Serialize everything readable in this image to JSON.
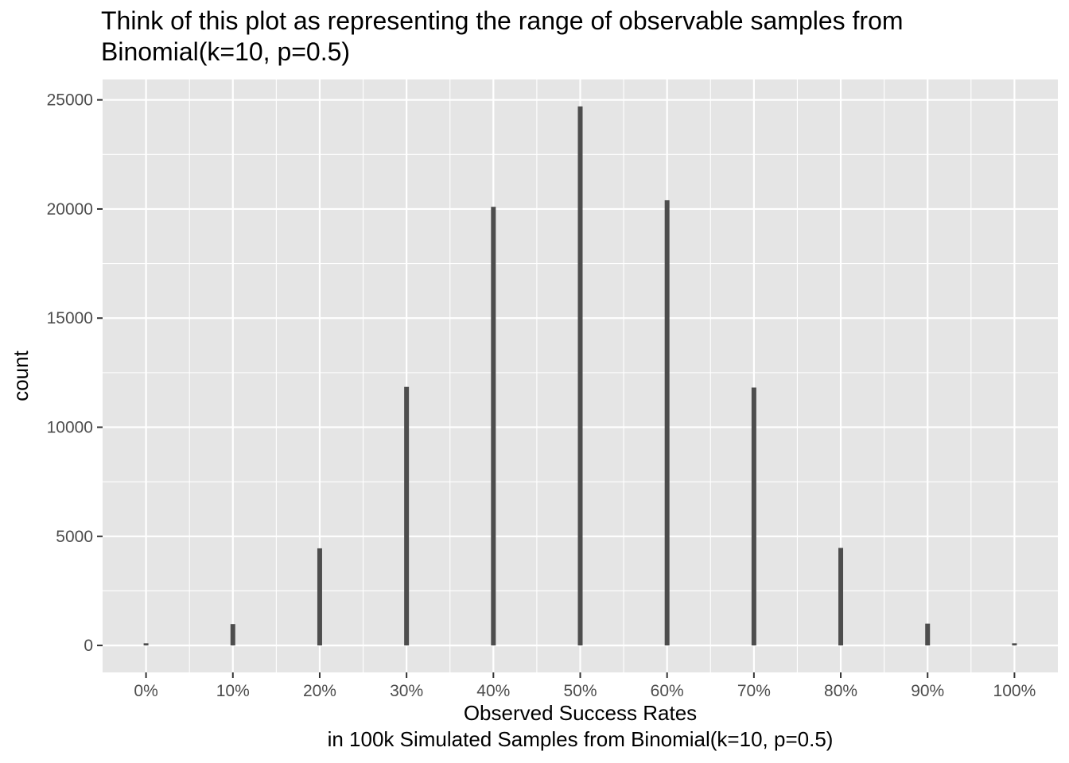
{
  "chart_data": {
    "type": "bar",
    "title_lines": [
      "Think of this plot as representing the range of observable samples from",
      "Binomial(k=10, p=0.5)"
    ],
    "xlabel_lines": [
      "Observed Success Rates",
      "in 100k Simulated Samples from Binomial(k=10, p=0.5)"
    ],
    "ylabel": "count",
    "x": [
      0,
      0.1,
      0.2,
      0.3,
      0.4,
      0.5,
      0.6,
      0.7,
      0.8,
      0.9,
      1.0
    ],
    "categories": [
      "0%",
      "10%",
      "20%",
      "30%",
      "40%",
      "50%",
      "60%",
      "70%",
      "80%",
      "90%",
      "100%"
    ],
    "values": [
      100,
      980,
      4450,
      11850,
      20100,
      24700,
      20400,
      11820,
      4470,
      1000,
      100
    ],
    "y_ticks": [
      0,
      5000,
      10000,
      15000,
      20000,
      25000
    ],
    "y_tick_labels": [
      "0",
      "5000",
      "10000",
      "15000",
      "20000",
      "25000"
    ],
    "xlim": [
      -0.05,
      1.05
    ],
    "ylim": [
      -1235,
      25935
    ],
    "grid": true,
    "legend": "none",
    "colors": {
      "panel": "#e5e5e5",
      "grid_major": "#ffffff",
      "bar": "#4d4d4d",
      "tick_text": "#4d4d4d",
      "axis_title": "#000000"
    }
  }
}
